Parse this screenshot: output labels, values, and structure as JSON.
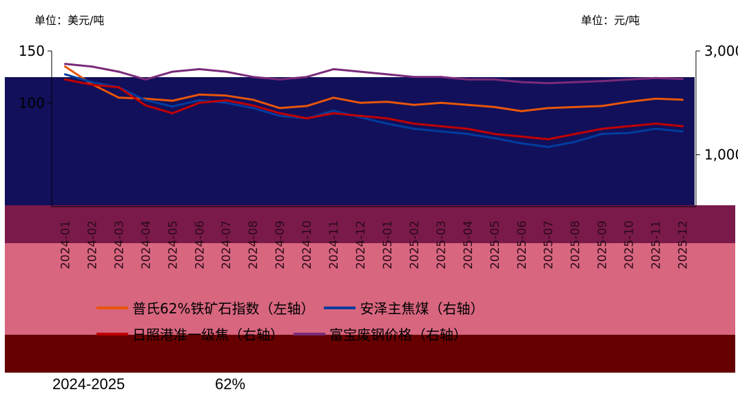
{
  "header": {
    "unit_left": "单位：美元/吨",
    "unit_right": "单位：元/吨"
  },
  "caption": {
    "left": "2024-2025",
    "right": "62%"
  },
  "colors": {
    "iron_ore": "#e8560a",
    "coking_coal": "#003c9e",
    "coke": "#c00000",
    "scrap": "#7a2a7a"
  },
  "chart_data": {
    "type": "line",
    "x": [
      "2024-01",
      "2024-02",
      "2024-03",
      "2024-04",
      "2024-05",
      "2024-06",
      "2024-07",
      "2024-08",
      "2024-09",
      "2024-10",
      "2024-11",
      "2024-12",
      "2025-01",
      "2025-02",
      "2025-03",
      "2025-04",
      "2025-05",
      "2025-06",
      "2025-07",
      "2025-08",
      "2025-09",
      "2025-10",
      "2025-11",
      "2025-12"
    ],
    "xlabel": "",
    "y_left": {
      "ylim": [
        0,
        150
      ],
      "ticks": [
        "150",
        "100"
      ]
    },
    "y_right": {
      "ylim": [
        0,
        3000
      ],
      "ticks": [
        "3,000",
        "1,000"
      ]
    },
    "series": [
      {
        "name": "普氏62%铁矿石指数（左轴）",
        "axis": "left",
        "color_key": "iron_ore",
        "values": [
          135,
          118,
          105,
          104,
          102,
          108,
          107,
          103,
          95,
          97,
          105,
          100,
          101,
          98,
          100,
          98,
          96,
          92,
          95,
          96,
          97,
          101,
          104,
          103
        ]
      },
      {
        "name": "安泽主焦煤（右轴）",
        "axis": "right",
        "color_key": "coking_coal",
        "values": [
          2550,
          2400,
          2300,
          2050,
          1930,
          2050,
          2000,
          1900,
          1750,
          1700,
          1850,
          1720,
          1600,
          1500,
          1450,
          1400,
          1320,
          1220,
          1150,
          1250,
          1400,
          1420,
          1500,
          1450
        ]
      },
      {
        "name": "日照港准一级焦（右轴）",
        "axis": "right",
        "color_key": "coke",
        "values": [
          2450,
          2350,
          2300,
          1950,
          1800,
          2000,
          2050,
          1950,
          1800,
          1700,
          1800,
          1750,
          1700,
          1600,
          1550,
          1500,
          1400,
          1350,
          1300,
          1400,
          1500,
          1550,
          1600,
          1550
        ]
      },
      {
        "name": "富宝废钢价格（右轴）",
        "axis": "right",
        "color_key": "scrap",
        "values": [
          2750,
          2700,
          2600,
          2450,
          2600,
          2650,
          2600,
          2500,
          2450,
          2500,
          2650,
          2600,
          2550,
          2500,
          2500,
          2450,
          2450,
          2400,
          2380,
          2400,
          2420,
          2450,
          2480,
          2460
        ]
      }
    ],
    "legend_placement": "bottom",
    "grid": false
  },
  "legend": [
    {
      "label": "普氏62%铁矿石指数（左轴）",
      "color": "#e8560a"
    },
    {
      "label": "安泽主焦煤（右轴）",
      "color": "#003c9e"
    },
    {
      "label": "日照港准一级焦（右轴）",
      "color": "#c00000"
    },
    {
      "label": "富宝废钢价格（右轴）",
      "color": "#7a2a7a"
    }
  ]
}
